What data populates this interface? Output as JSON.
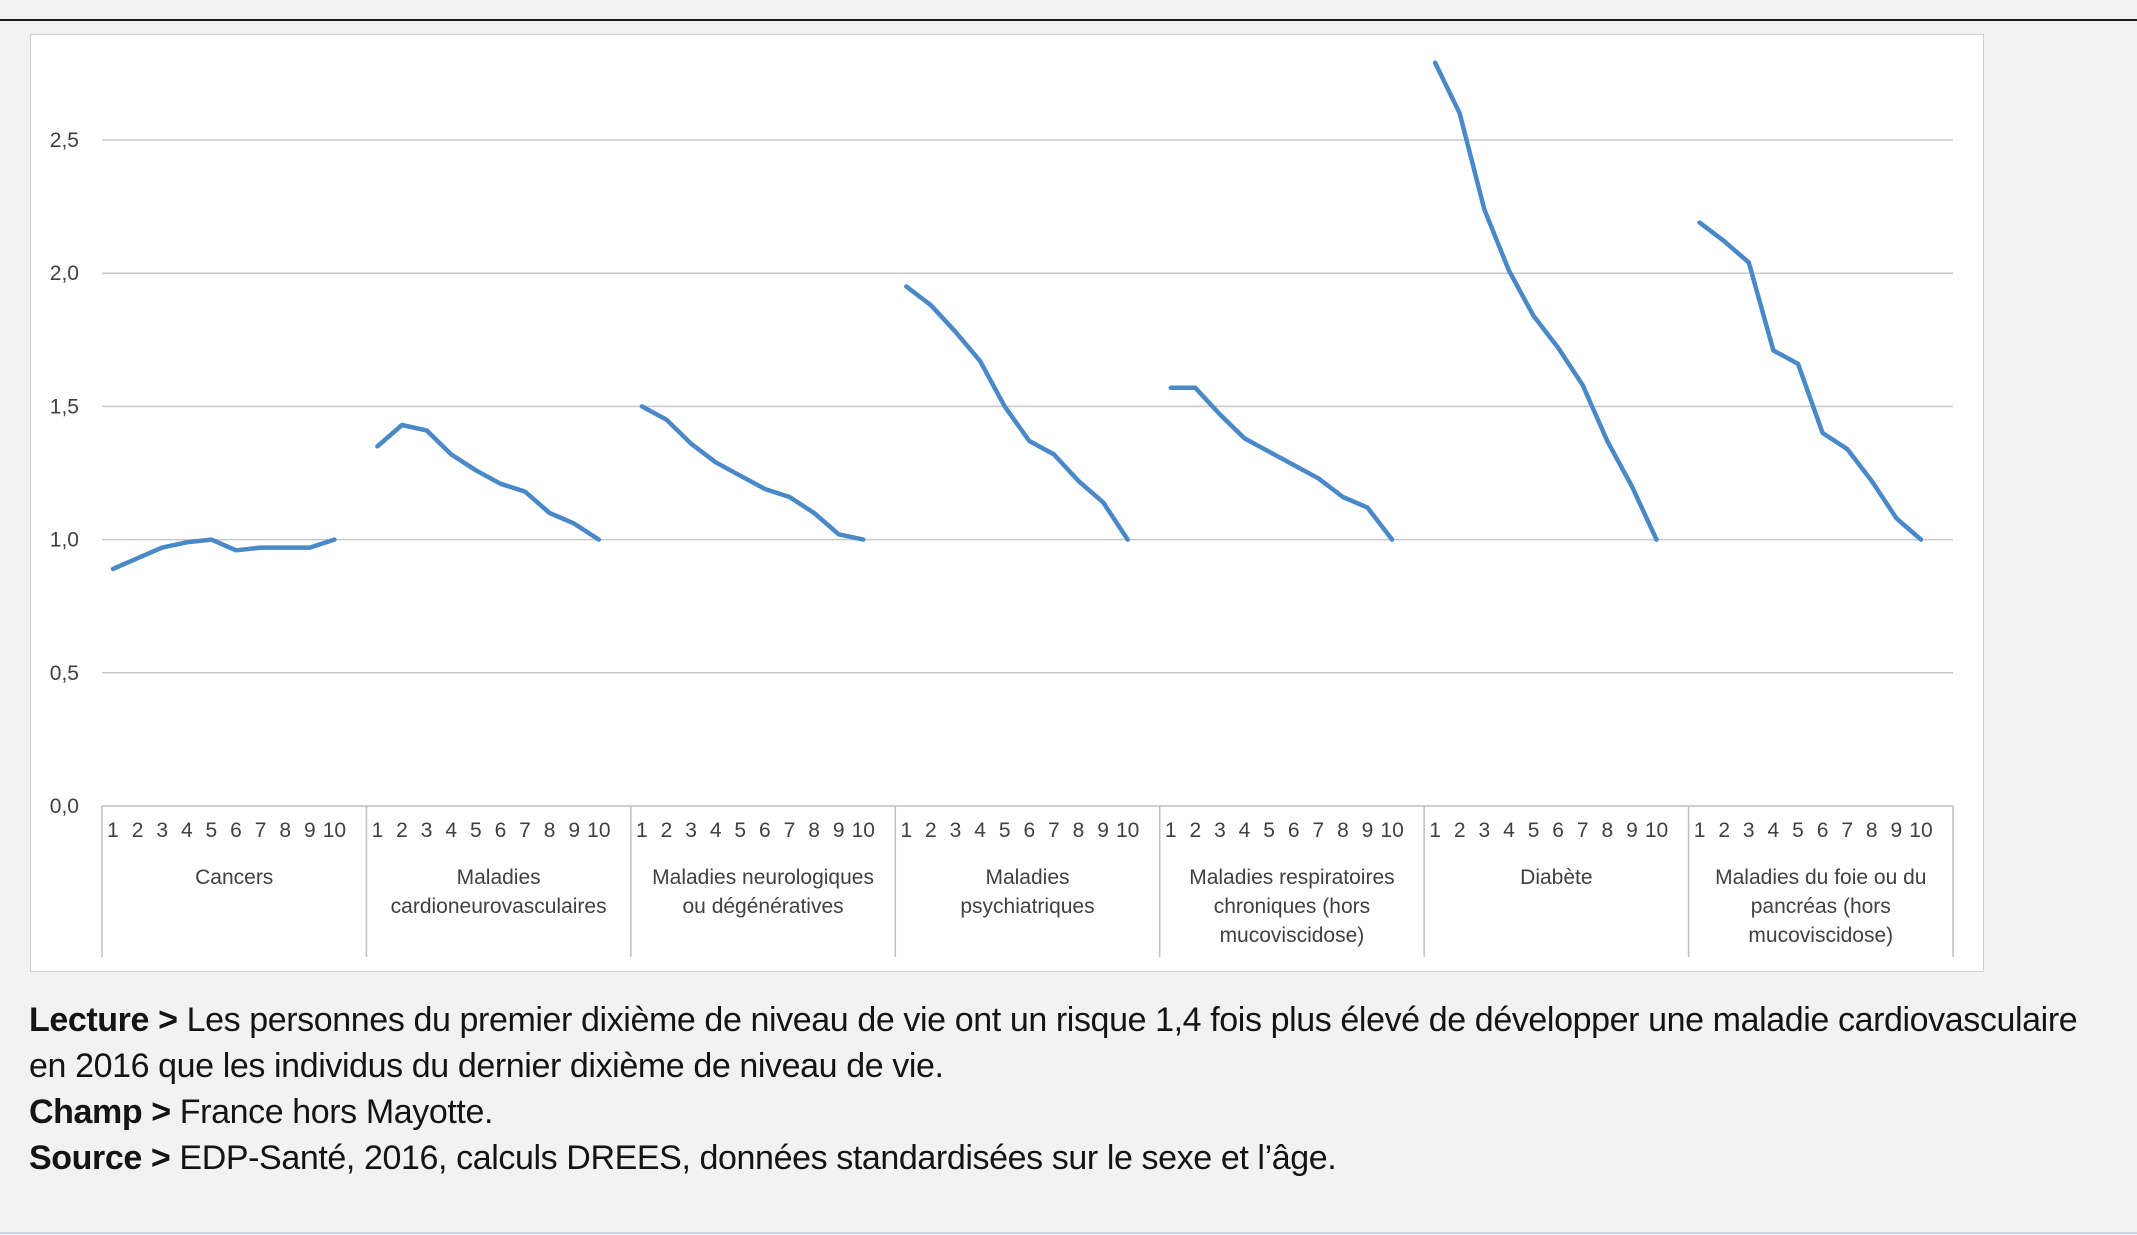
{
  "chart_data": {
    "type": "line",
    "ylim": [
      0,
      2.8
    ],
    "y_ticks": [
      "0,0",
      "0,5",
      "1,0",
      "1,5",
      "2,0",
      "2,5"
    ],
    "y_tick_values": [
      0,
      0.5,
      1.0,
      1.5,
      2.0,
      2.5
    ],
    "grid": true,
    "line_color": "#4a89c8",
    "decile_labels": [
      "1",
      "2",
      "3",
      "4",
      "5",
      "6",
      "7",
      "8",
      "9",
      "10"
    ],
    "groups": [
      {
        "label": "Cancers",
        "values": [
          0.89,
          0.93,
          0.97,
          0.99,
          1.0,
          0.96,
          0.97,
          0.97,
          0.97,
          1.0
        ]
      },
      {
        "label": "Maladies cardioneurovasculaires",
        "values": [
          1.35,
          1.43,
          1.41,
          1.32,
          1.26,
          1.21,
          1.18,
          1.1,
          1.06,
          1.0
        ]
      },
      {
        "label": "Maladies neurologiques ou dégénératives",
        "values": [
          1.5,
          1.45,
          1.36,
          1.29,
          1.24,
          1.19,
          1.16,
          1.1,
          1.02,
          1.0
        ]
      },
      {
        "label": "Maladies psychiatriques",
        "values": [
          1.95,
          1.88,
          1.78,
          1.67,
          1.5,
          1.37,
          1.32,
          1.22,
          1.14,
          1.0
        ]
      },
      {
        "label": "Maladies respiratoires chroniques (hors mucoviscidose)",
        "values": [
          1.57,
          1.57,
          1.47,
          1.38,
          1.33,
          1.28,
          1.23,
          1.16,
          1.12,
          1.0
        ]
      },
      {
        "label": "Diabète",
        "values": [
          2.79,
          2.6,
          2.24,
          2.01,
          1.84,
          1.72,
          1.58,
          1.37,
          1.2,
          1.0
        ]
      },
      {
        "label": "Maladies du foie ou du pancréas (hors mucoviscidose)",
        "values": [
          2.19,
          2.12,
          2.04,
          1.71,
          1.66,
          1.4,
          1.34,
          1.22,
          1.08,
          1.0
        ]
      }
    ]
  },
  "notes": {
    "lecture_label": "Lecture >",
    "lecture_text": " Les personnes du premier dixième de niveau de vie ont un risque 1,4 fois plus élevé de développer une maladie cardiovasculaire en 2016 que les individus du dernier dixième de niveau de vie.",
    "champ_label": "Champ >",
    "champ_text": " France hors Mayotte.",
    "source_label": "Source >",
    "source_text": " EDP-Santé, 2016, calculs DREES, données standardisées sur le sexe et l’âge."
  }
}
